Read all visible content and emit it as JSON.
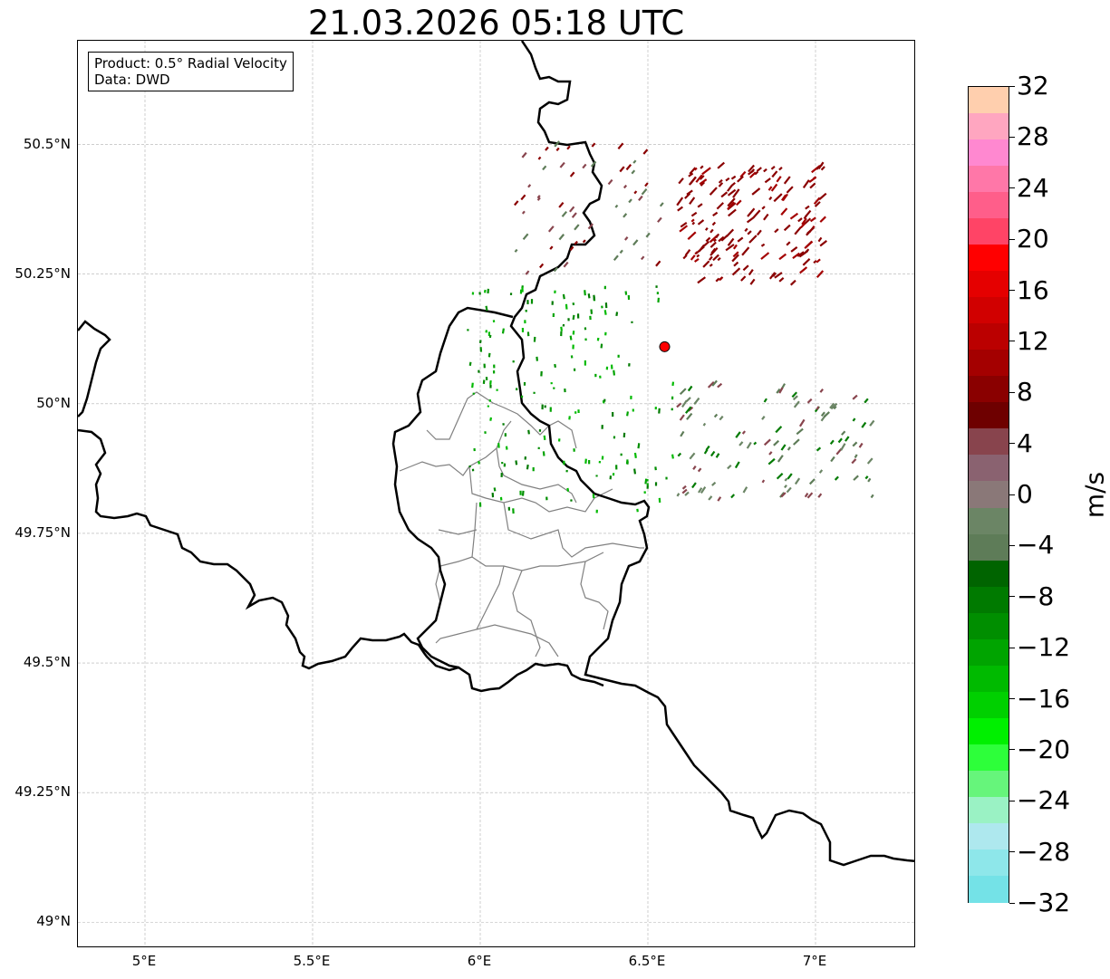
{
  "title": "21.03.2026 05:18 UTC",
  "info": {
    "product": "Product: 0.5° Radial Velocity",
    "source": "Data: DWD"
  },
  "map": {
    "lon_range": [
      4.8,
      7.3
    ],
    "lat_range": [
      48.95,
      50.7
    ],
    "lat_ticks": [
      {
        "value": 50.5,
        "label": "50.5°N"
      },
      {
        "value": 50.25,
        "label": "50.25°N"
      },
      {
        "value": 50.0,
        "label": "50°N"
      },
      {
        "value": 49.75,
        "label": "49.75°N"
      },
      {
        "value": 49.5,
        "label": "49.5°N"
      },
      {
        "value": 49.25,
        "label": "49.25°N"
      },
      {
        "value": 49.0,
        "label": "49°N"
      }
    ],
    "lon_ticks": [
      {
        "value": 5.0,
        "label": "5°E"
      },
      {
        "value": 5.5,
        "label": "5.5°E"
      },
      {
        "value": 6.0,
        "label": "6°E"
      },
      {
        "value": 6.5,
        "label": "6.5°E"
      },
      {
        "value": 7.0,
        "label": "7°E"
      }
    ],
    "radar_site": {
      "lon": 6.55,
      "lat": 50.11
    },
    "border_color": "#000000",
    "subdivision_color": "#808080",
    "grid_color": "#b0b0b0",
    "site_color": "#ff0000"
  },
  "colorbar": {
    "unit": "m/s",
    "min": -32,
    "max": 32,
    "labels": [
      "32",
      "28",
      "24",
      "20",
      "16",
      "12",
      "8",
      "4",
      "0",
      "−4",
      "−8",
      "−12",
      "−16",
      "−20",
      "−24",
      "−28",
      "−32"
    ],
    "label_values": [
      32,
      28,
      24,
      20,
      16,
      12,
      8,
      4,
      0,
      -4,
      -8,
      -12,
      -16,
      -20,
      -24,
      -28,
      -32
    ],
    "colors_top_to_bottom": [
      "#ffcfae",
      "#ffa6c0",
      "#ff88d0",
      "#ff77a8",
      "#ff5e8a",
      "#ff4466",
      "#ff0000",
      "#e50000",
      "#d10000",
      "#bb0000",
      "#a40000",
      "#8a0000",
      "#6e0000",
      "#88444d",
      "#8a6270",
      "#8a7878",
      "#6b8565",
      "#5e7c58",
      "#006400",
      "#007a00",
      "#008e00",
      "#00a400",
      "#00ba00",
      "#00d000",
      "#00f000",
      "#2dff3a",
      "#66f57b",
      "#9af2c4",
      "#aee8ee",
      "#8ee7ea",
      "#74e2e7"
    ]
  }
}
